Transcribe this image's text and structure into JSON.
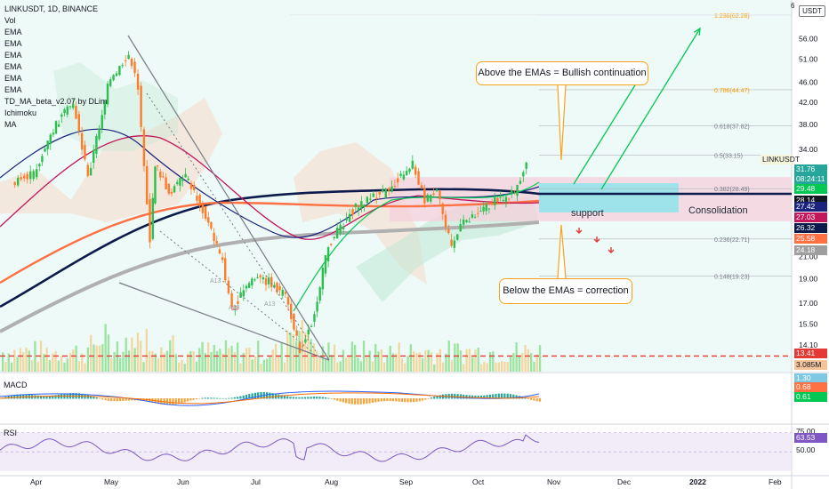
{
  "legend": {
    "symbol": "LINKUSDT, 1D, BINANCE",
    "indicators": [
      "Vol",
      "EMA",
      "EMA",
      "EMA",
      "EMA",
      "EMA",
      "EMA",
      "TD_MA_beta_v2.07 by DLim",
      "Ichimoku",
      "MA"
    ]
  },
  "currency": "USDT",
  "corner_badge": "6",
  "annotations": {
    "above": "Above the EMAs = Bullish continuation",
    "below": "Below the EMAs = correction",
    "support": "support",
    "consolidation": "Consolidation",
    "td_marks": [
      "A13",
      "A13",
      "A13",
      "13"
    ]
  },
  "fib_levels": [
    {
      "label": "1.236(62.28)",
      "value": 62.28
    },
    {
      "label": "0.786(44.47)",
      "value": 44.47
    },
    {
      "label": "0.618(37.82)",
      "value": 37.82
    },
    {
      "label": "0.5(33.15)",
      "value": 33.15
    },
    {
      "label": "0.382(28.49)",
      "value": 28.49
    },
    {
      "label": "0.236(22.71)",
      "value": 22.71
    },
    {
      "label": "0.148(19.23)",
      "value": 19.23
    }
  ],
  "price_tags": [
    {
      "text": "LINKUSDT",
      "color": "#f5f5dc",
      "text_color": "#131722"
    },
    {
      "text": "31.76",
      "color": "#26a69a"
    },
    {
      "text": "08:24:11",
      "color": "#26a69a"
    },
    {
      "text": "29.48",
      "color": "#00c853"
    },
    {
      "text": "28.14",
      "color": "#131722"
    },
    {
      "text": "27.42",
      "color": "#1a237e"
    },
    {
      "text": "27.03",
      "color": "#c2185b"
    },
    {
      "text": "26.32",
      "color": "#0d1b4c"
    },
    {
      "text": "25.58",
      "color": "#ff7043"
    },
    {
      "text": "24.18",
      "color": "#9e9e9e"
    },
    {
      "text": "13.41",
      "color": "#e53935"
    },
    {
      "text": "3.085M",
      "color": "#f5c49b",
      "text_color": "#131722"
    }
  ],
  "macd_tags": [
    {
      "text": "1.30",
      "color": "#7ec8e3"
    },
    {
      "text": "0.68",
      "color": "#ff7043"
    },
    {
      "text": "0.61",
      "color": "#00c853"
    }
  ],
  "rsi_tags": [
    {
      "text": "75.00",
      "color": "#ffffff",
      "text_color": "#131722"
    },
    {
      "text": "63.53",
      "color": "#7e57c2"
    },
    {
      "text": "50.00",
      "color": "#ffffff",
      "text_color": "#131722"
    }
  ],
  "panes": {
    "macd": "MACD",
    "rsi": "RSI"
  },
  "x_axis": [
    "Apr",
    "May",
    "Jun",
    "Jul",
    "Aug",
    "Sep",
    "Oct",
    "Nov",
    "Dec",
    "2022",
    "Feb"
  ],
  "chart_data": {
    "type": "candlestick",
    "symbol": "LINKUSDT",
    "interval": "1D",
    "y_scale": "log",
    "y_ticks": [
      56.0,
      51.0,
      46.0,
      42.0,
      38.0,
      34.0,
      30.0,
      27.0,
      24.0,
      21.0,
      19.0,
      17.0,
      15.5,
      14.1,
      12.8
    ],
    "ylim": [
      12.5,
      64.0
    ],
    "last_price": 31.76,
    "support_line": 13.41,
    "ema_values": [
      29.48,
      28.14,
      27.42,
      27.03,
      26.32,
      25.58,
      24.18
    ],
    "volume_last": "3.085M",
    "macd_values": [
      1.3,
      0.68,
      0.61
    ],
    "rsi_value": 63.53,
    "rsi_levels": [
      75.0,
      50.0
    ],
    "price_path": [
      {
        "x": "Mar 22",
        "y": 29.0
      },
      {
        "x": "Apr 1",
        "y": 30.5
      },
      {
        "x": "Apr 10",
        "y": 38.0
      },
      {
        "x": "Apr 17",
        "y": 42.0
      },
      {
        "x": "Apr 23",
        "y": 30.0
      },
      {
        "x": "May 1",
        "y": 45.0
      },
      {
        "x": "May 10",
        "y": 52.0
      },
      {
        "x": "May 14",
        "y": 45.0
      },
      {
        "x": "May 19",
        "y": 22.5
      },
      {
        "x": "May 21",
        "y": 32.0
      },
      {
        "x": "May 27",
        "y": 28.0
      },
      {
        "x": "Jun 3",
        "y": 30.0
      },
      {
        "x": "Jun 10",
        "y": 26.0
      },
      {
        "x": "Jun 18",
        "y": 20.5
      },
      {
        "x": "Jun 22",
        "y": 16.5
      },
      {
        "x": "Jun 30",
        "y": 19.0
      },
      {
        "x": "Jul 7",
        "y": 18.8
      },
      {
        "x": "Jul 14",
        "y": 17.5
      },
      {
        "x": "Jul 20",
        "y": 13.8
      },
      {
        "x": "Jul 25",
        "y": 15.5
      },
      {
        "x": "Aug 1",
        "y": 22.0
      },
      {
        "x": "Aug 10",
        "y": 25.5
      },
      {
        "x": "Aug 16",
        "y": 27.0
      },
      {
        "x": "Aug 25",
        "y": 28.0
      },
      {
        "x": "Sep 5",
        "y": 32.0
      },
      {
        "x": "Sep 10",
        "y": 27.0
      },
      {
        "x": "Sep 15",
        "y": 28.0
      },
      {
        "x": "Sep 21",
        "y": 22.0
      },
      {
        "x": "Sep 26",
        "y": 24.5
      },
      {
        "x": "Oct 3",
        "y": 26.0
      },
      {
        "x": "Oct 10",
        "y": 27.0
      },
      {
        "x": "Oct 17",
        "y": 28.0
      },
      {
        "x": "Oct 22",
        "y": 31.76
      }
    ]
  },
  "colors": {
    "up": "#26a69a",
    "down": "#ef5350",
    "bull_volume": "#9be49f",
    "bear_volume": "#f2d8a0",
    "ema_navy": "#0d1b4c",
    "ema_orange": "#ff7043",
    "ema_grey": "#b0b0b0",
    "ema_pink": "#c2185b",
    "ema_lime": "#00c853",
    "arrow_green": "#00c853",
    "arrow_red": "#e53935",
    "callout": "#f7a21b",
    "support_zone": "#9ee3ea",
    "consolidation_zone": "#f5d0dc"
  }
}
